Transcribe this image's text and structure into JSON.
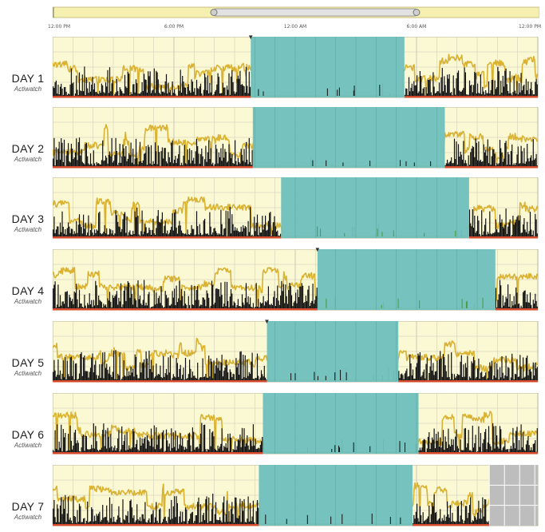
{
  "scrubber": {
    "track_color": "#f6f0b0",
    "thumb_color": "#dcdcdc"
  },
  "time_axis": {
    "labels": [
      "12:00 PM",
      "6:00 PM",
      "12:00 AM",
      "6:00 AM",
      "12:00 PM"
    ],
    "label_hours": [
      0,
      6,
      12,
      18,
      24
    ]
  },
  "colors": {
    "sleep_band": "#6fbfbd",
    "light_trace": "#d9b232",
    "activity": "#111111",
    "off_wrist": "#d44a2a",
    "background": "#fbf8d4",
    "grid": "#c8c8b8",
    "missing": "#bdbdbd"
  },
  "chart_data": {
    "type": "area",
    "xlabel": "",
    "ylabel": "",
    "x_range_hours": [
      0,
      24
    ],
    "grid": true,
    "legend": "none",
    "series": [
      {
        "name": "activity",
        "unit": ""
      },
      {
        "name": "light",
        "unit": ""
      },
      {
        "name": "sleep",
        "unit": ""
      }
    ],
    "days": [
      {
        "label": "DAY 1",
        "sublabel": "Actiwatch",
        "sleep_start_h": 9.8,
        "sleep_end_h": 17.4,
        "has_wake_marker": true,
        "missing_from_h": null
      },
      {
        "label": "DAY 2",
        "sublabel": "Actiwatch",
        "sleep_start_h": 9.9,
        "sleep_end_h": 19.4,
        "has_wake_marker": false,
        "missing_from_h": null
      },
      {
        "label": "DAY 3",
        "sublabel": "Actiwatch",
        "sleep_start_h": 11.3,
        "sleep_end_h": 20.6,
        "has_wake_marker": false,
        "missing_from_h": null
      },
      {
        "label": "DAY 4",
        "sublabel": "Actiwatch",
        "sleep_start_h": 13.1,
        "sleep_end_h": 21.9,
        "has_wake_marker": true,
        "missing_from_h": null
      },
      {
        "label": "DAY 5",
        "sublabel": "Actiwatch",
        "sleep_start_h": 10.6,
        "sleep_end_h": 17.1,
        "has_wake_marker": true,
        "missing_from_h": null
      },
      {
        "label": "DAY 6",
        "sublabel": "Actiwatch",
        "sleep_start_h": 10.4,
        "sleep_end_h": 18.1,
        "has_wake_marker": false,
        "missing_from_h": null
      },
      {
        "label": "DAY 7",
        "sublabel": "Actiwatch",
        "sleep_start_h": 10.2,
        "sleep_end_h": 17.8,
        "has_wake_marker": false,
        "missing_from_h": 21.6
      }
    ]
  }
}
